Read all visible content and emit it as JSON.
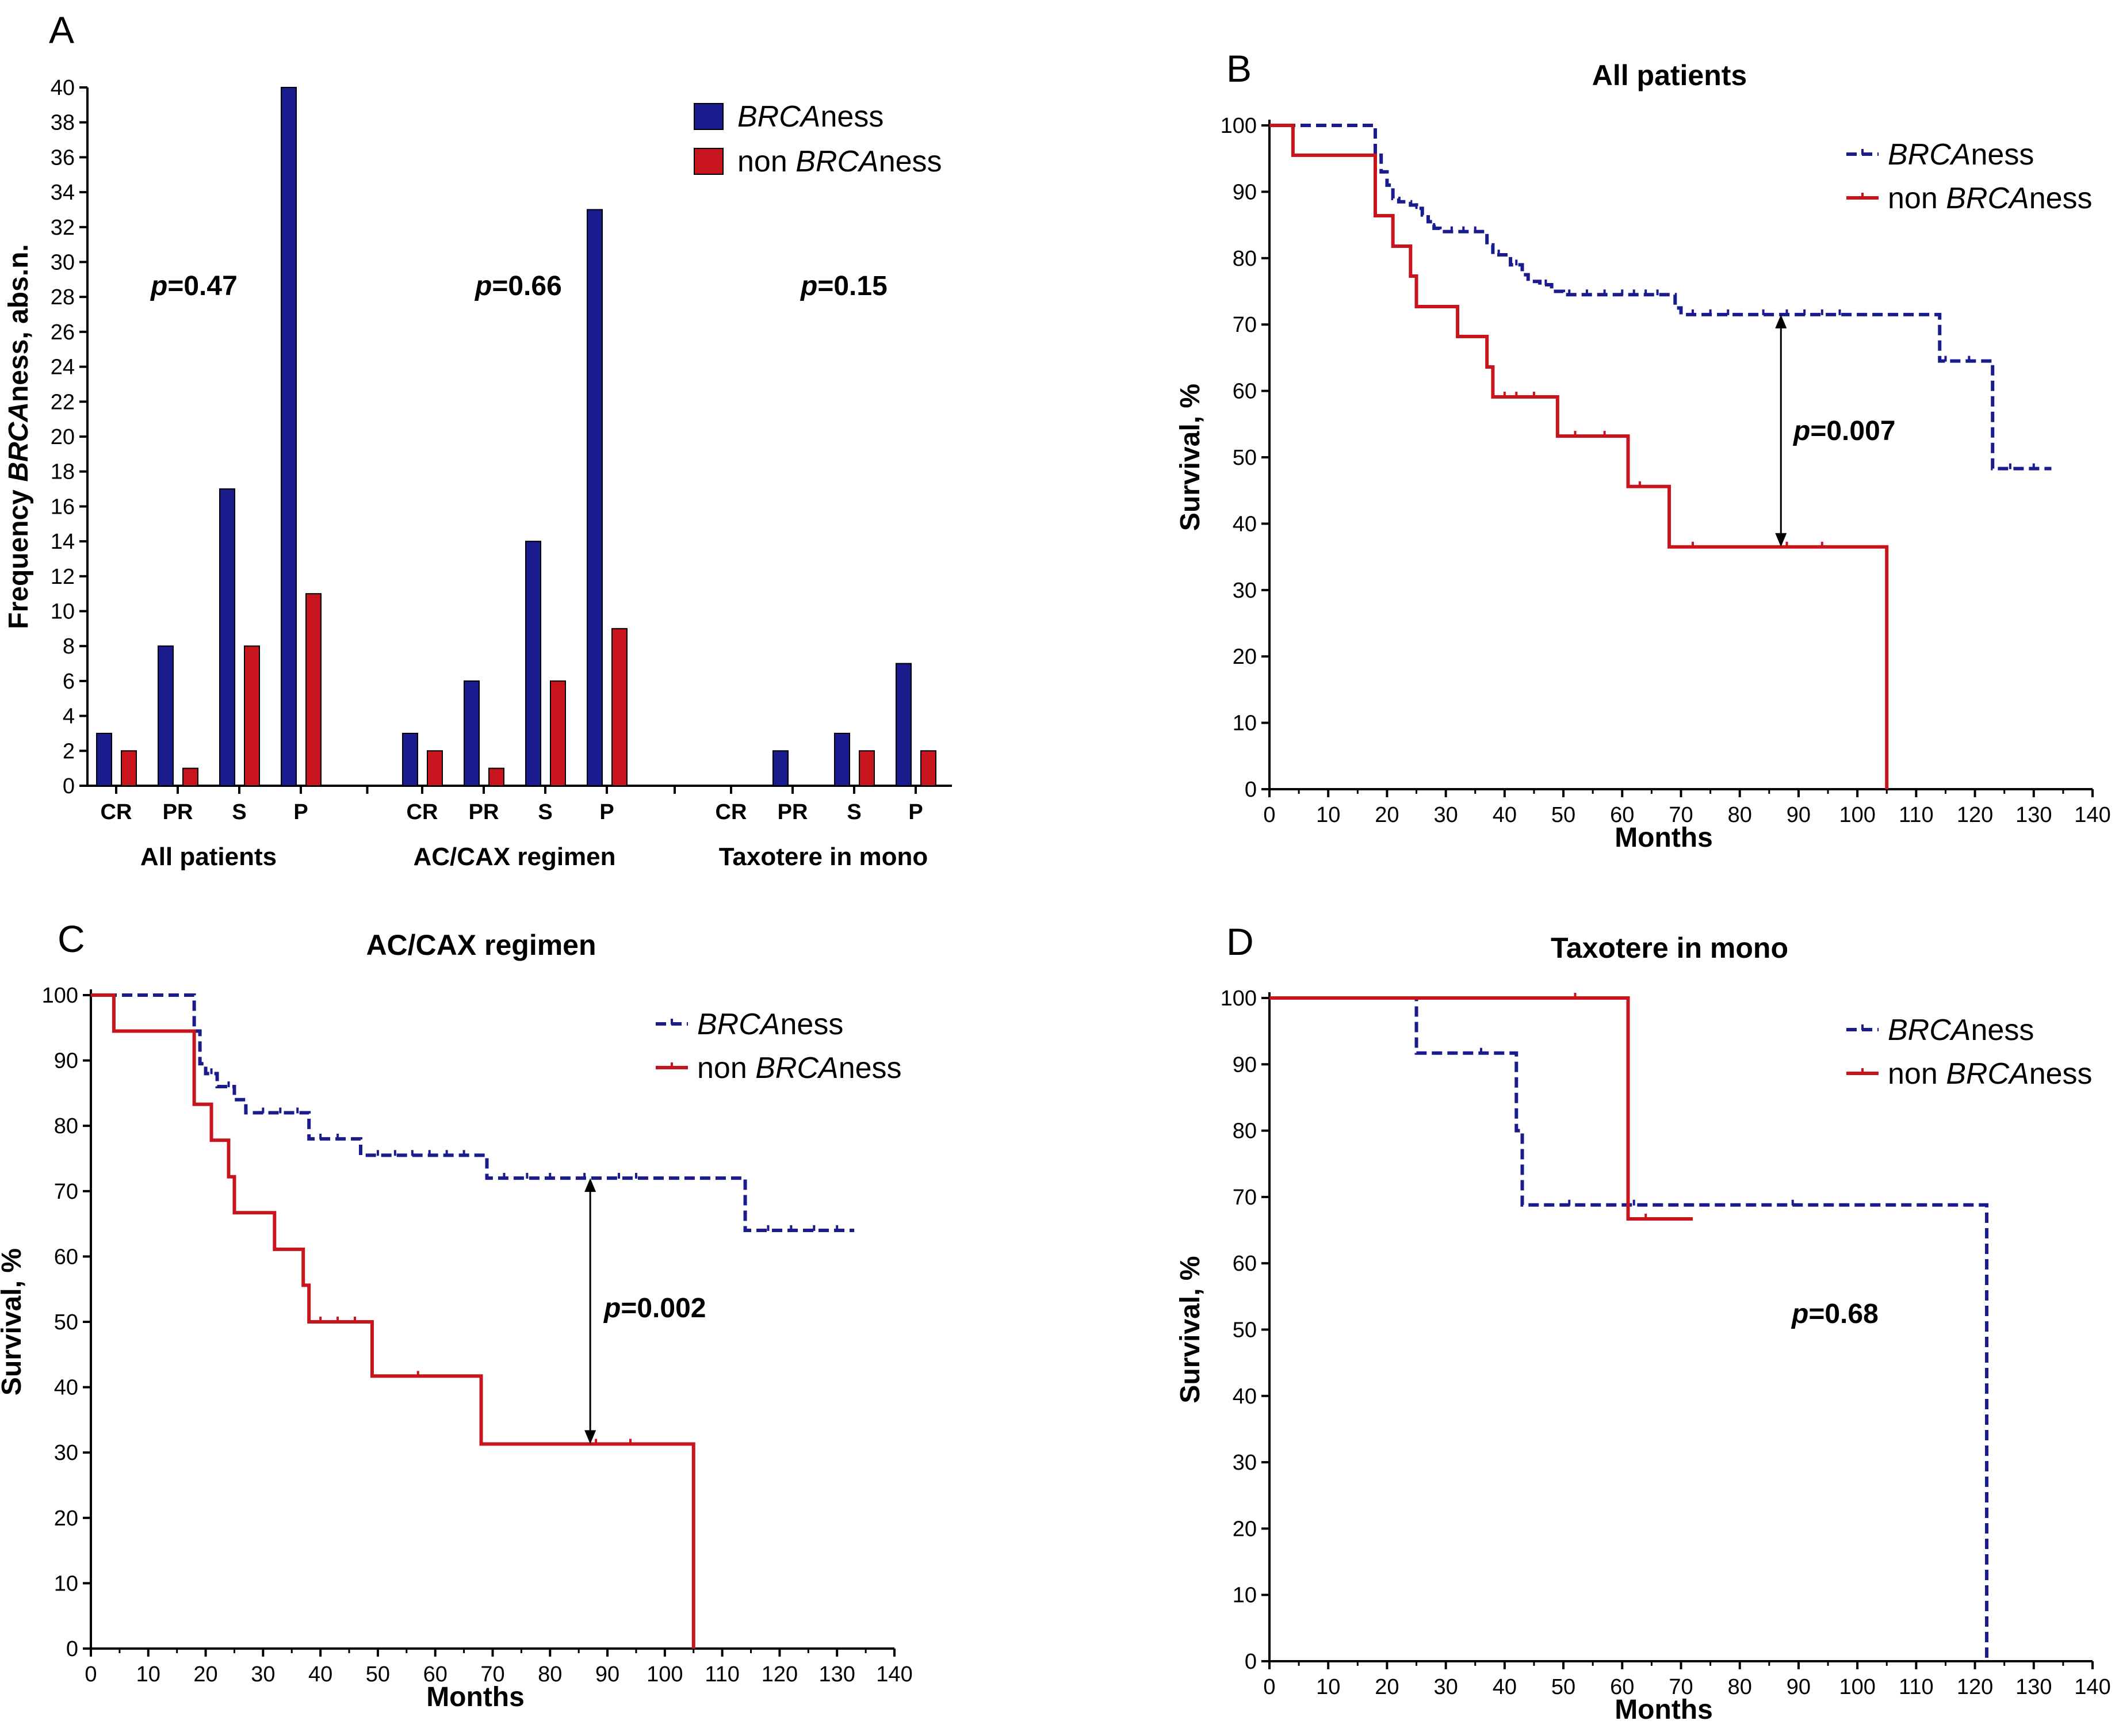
{
  "colors": {
    "brcaness": "#1a1c8e",
    "non_brcaness": "#c8141c",
    "axis": "#000000"
  },
  "chart_data": [
    {
      "panel": "A",
      "type": "bar",
      "title": "",
      "ylabel": {
        "pre": "Frequency ",
        "italic": "BRCA",
        "post": "ness, abs.n."
      },
      "ylim": [
        0,
        40
      ],
      "yticks": [
        "0",
        "2",
        "4",
        "6",
        "8",
        "10",
        "12",
        "14",
        "16",
        "18",
        "20",
        "22",
        "24",
        "26",
        "28",
        "30",
        "32",
        "34",
        "36",
        "38",
        "40"
      ],
      "categories": [
        "CR",
        "PR",
        "S",
        "P"
      ],
      "legend": [
        {
          "italic": "BRCA",
          "post": "ness",
          "color": "#1a1c8e"
        },
        {
          "pre": "non ",
          "italic": "BRCA",
          "post": "ness",
          "color": "#c8141c"
        }
      ],
      "groups": [
        {
          "name": "All patients",
          "brcaness": [
            3,
            8,
            17,
            40
          ],
          "non_brcaness": [
            2,
            1,
            8,
            11
          ],
          "pvalue": "=0.47"
        },
        {
          "name": "AC/CAX regimen",
          "brcaness": [
            3,
            6,
            14,
            33
          ],
          "non_brcaness": [
            2,
            1,
            6,
            9
          ],
          "pvalue": "=0.66"
        },
        {
          "name": "Taxotere in mono",
          "brcaness": [
            0,
            2,
            3,
            7
          ],
          "non_brcaness": [
            0,
            0,
            2,
            2
          ],
          "pvalue": "=0.15"
        }
      ]
    },
    {
      "panel": "B",
      "type": "line",
      "subtype": "kaplan-meier",
      "title": "All patients",
      "xlabel": "Months",
      "ylabel": "Survival, %",
      "xlim": [
        0,
        140
      ],
      "ylim": [
        0,
        100
      ],
      "xticks": [
        "0",
        "10",
        "20",
        "30",
        "40",
        "50",
        "60",
        "70",
        "80",
        "90",
        "100",
        "110",
        "120",
        "130",
        "140"
      ],
      "yticks": [
        "0",
        "10",
        "20",
        "30",
        "40",
        "50",
        "60",
        "70",
        "80",
        "90",
        "100"
      ],
      "legend": [
        {
          "italic": "BRCA",
          "post": "ness"
        },
        {
          "pre": "non ",
          "italic": "BRCA",
          "post": "ness"
        }
      ],
      "series": [
        {
          "name": "BRCAness",
          "style": "dashed",
          "x": [
            0,
            17.5,
            18,
            19,
            20,
            21,
            22,
            24,
            25,
            26,
            27,
            28,
            29,
            30,
            36,
            37,
            38,
            40,
            41,
            43,
            44,
            46,
            48,
            50,
            68,
            69,
            70,
            113,
            114,
            122,
            123,
            133
          ],
          "y": [
            100,
            100,
            95.5,
            93,
            91,
            89,
            88.5,
            88,
            87.5,
            86.5,
            85.5,
            84.5,
            84,
            84,
            84,
            82,
            80.5,
            80.5,
            79,
            77.5,
            76.5,
            76,
            75,
            74.5,
            74.5,
            72.5,
            71.5,
            71.5,
            64.5,
            64.5,
            48.3,
            48.3
          ],
          "censor_x": [
            25,
            28,
            31,
            33,
            35,
            39,
            42,
            47,
            51,
            54,
            57,
            60,
            62,
            64,
            66,
            72,
            75,
            78,
            84,
            88,
            91,
            94,
            97,
            115,
            119,
            126,
            130
          ]
        },
        {
          "name": "non BRCAness",
          "style": "solid",
          "x": [
            0,
            4,
            18,
            21,
            24,
            25,
            32,
            37,
            38,
            49,
            61,
            68,
            105,
            105
          ],
          "y": [
            100,
            95.5,
            86.4,
            81.8,
            77.3,
            72.7,
            68.2,
            63.6,
            59.1,
            53.2,
            45.6,
            36.5,
            36.5,
            0
          ],
          "censor_x": [
            40,
            42,
            45,
            52,
            57,
            63,
            72,
            88,
            94
          ]
        }
      ],
      "annotation": {
        "x": 87,
        "y1": 71.5,
        "y2": 36.5,
        "text": "=0.007"
      }
    },
    {
      "panel": "C",
      "type": "line",
      "subtype": "kaplan-meier",
      "title": "AC/CAX regimen",
      "xlabel": "Months",
      "ylabel": "Survival, %",
      "xlim": [
        0,
        140
      ],
      "ylim": [
        0,
        100
      ],
      "xticks": [
        "0",
        "10",
        "20",
        "30",
        "40",
        "50",
        "60",
        "70",
        "80",
        "90",
        "100",
        "110",
        "120",
        "130",
        "140"
      ],
      "yticks": [
        "0",
        "10",
        "20",
        "30",
        "40",
        "50",
        "60",
        "70",
        "80",
        "90",
        "100"
      ],
      "legend": [
        {
          "italic": "BRCA",
          "post": "ness"
        },
        {
          "pre": "non ",
          "italic": "BRCA",
          "post": "ness"
        }
      ],
      "series": [
        {
          "name": "BRCAness",
          "style": "dashed",
          "x": [
            0,
            17.5,
            18,
            19,
            20,
            22,
            25,
            27,
            37,
            38,
            46,
            47,
            68,
            69,
            113,
            114,
            133
          ],
          "y": [
            100,
            100,
            94.5,
            89.5,
            88,
            86,
            84,
            82,
            82,
            78,
            78,
            75.5,
            75.5,
            72,
            72,
            64,
            64
          ],
          "censor_x": [
            21,
            24,
            30,
            33,
            36,
            40,
            43,
            50,
            53,
            56,
            59,
            62,
            65,
            72,
            76,
            80,
            86,
            92,
            95,
            118,
            122,
            126,
            130
          ]
        },
        {
          "name": "non BRCAness",
          "style": "solid",
          "x": [
            0,
            4,
            18,
            21,
            24,
            25,
            32,
            37,
            38,
            49,
            68,
            105,
            105
          ],
          "y": [
            100,
            94.5,
            83.3,
            77.8,
            72.2,
            66.7,
            61.1,
            55.6,
            50,
            41.7,
            31.3,
            31.3,
            0
          ],
          "censor_x": [
            40,
            43,
            46,
            57,
            88,
            94
          ]
        }
      ],
      "annotation": {
        "x": 87,
        "y1": 72,
        "y2": 31.3,
        "text": "=0.002"
      }
    },
    {
      "panel": "D",
      "type": "line",
      "subtype": "kaplan-meier",
      "title": "Taxotere in mono",
      "xlabel": "Months",
      "ylabel": "Survival, %",
      "xlim": [
        0,
        140
      ],
      "ylim": [
        0,
        100
      ],
      "xticks": [
        "0",
        "10",
        "20",
        "30",
        "40",
        "50",
        "60",
        "70",
        "80",
        "90",
        "100",
        "110",
        "120",
        "130",
        "140"
      ],
      "yticks": [
        "0",
        "10",
        "20",
        "30",
        "40",
        "50",
        "60",
        "70",
        "80",
        "90",
        "100"
      ],
      "legend": [
        {
          "italic": "BRCA",
          "post": "ness"
        },
        {
          "pre": "non ",
          "italic": "BRCA",
          "post": "ness"
        }
      ],
      "series": [
        {
          "name": "BRCAness",
          "style": "dashed",
          "x": [
            0,
            25,
            42,
            43,
            122,
            122
          ],
          "y": [
            100,
            91.7,
            80,
            68.8,
            68.8,
            0
          ],
          "censor_x": [
            36,
            51,
            62,
            89
          ]
        },
        {
          "name": "non BRCAness",
          "style": "solid",
          "x": [
            0,
            61,
            72
          ],
          "y": [
            100,
            66.7,
            66.7
          ],
          "censor_x": [
            52,
            64
          ]
        }
      ],
      "annotation": {
        "text": "=0.68"
      }
    }
  ]
}
